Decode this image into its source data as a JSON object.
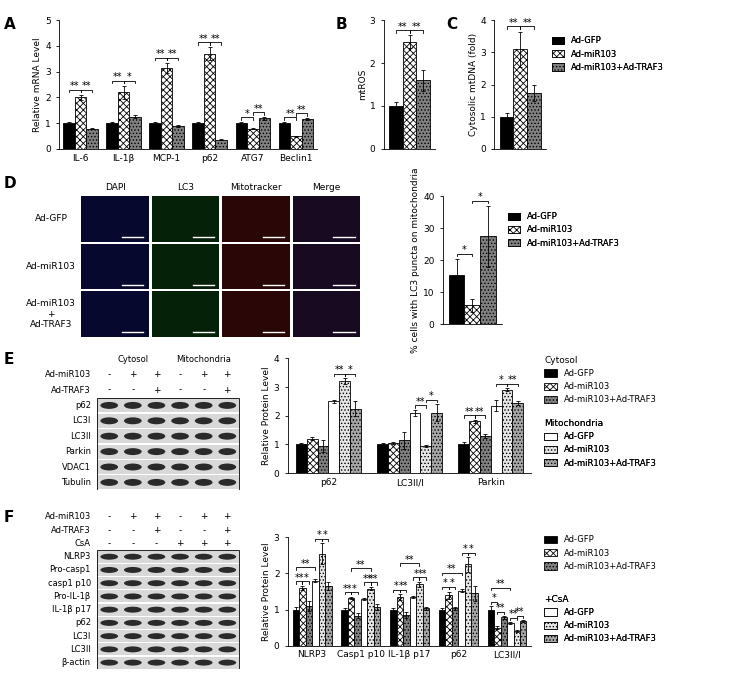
{
  "chart_data": [
    {
      "type": "bar",
      "panel": "A",
      "ylabel": "Relative mRNA Level",
      "categories": [
        "IL-6",
        "IL-1β",
        "MCP-1",
        "p62",
        "ATG7",
        "Beclin1"
      ],
      "series": [
        {
          "name": "Ad-GFP",
          "color": "#000000",
          "values": [
            1.0,
            1.0,
            1.0,
            1.0,
            1.0,
            1.0
          ],
          "errors": [
            0.03,
            0.04,
            0.05,
            0.04,
            0.03,
            0.03
          ]
        },
        {
          "name": "Ad-miR103",
          "color": "#ffffff",
          "values": [
            2.0,
            2.2,
            3.15,
            3.7,
            0.78,
            0.48
          ],
          "errors": [
            0.1,
            0.25,
            0.2,
            0.25,
            0.03,
            0.03
          ]
        },
        {
          "name": "Ad-miR103+Ad-TRAF3",
          "color": "#808080",
          "values": [
            0.78,
            1.25,
            0.88,
            0.35,
            1.18,
            1.15
          ],
          "errors": [
            0.03,
            0.05,
            0.03,
            0.02,
            0.05,
            0.04
          ]
        }
      ],
      "ylim": [
        0,
        5
      ],
      "yticks": [
        0,
        1,
        2,
        3,
        4,
        5
      ],
      "significance": [
        {
          "category": 0,
          "pair": [
            0,
            1
          ],
          "text": "**"
        },
        {
          "category": 0,
          "pair": [
            1,
            2
          ],
          "text": "**"
        },
        {
          "category": 1,
          "pair": [
            0,
            1
          ],
          "text": "**"
        },
        {
          "category": 1,
          "pair": [
            1,
            2
          ],
          "text": "*"
        },
        {
          "category": 2,
          "pair": [
            0,
            1
          ],
          "text": "**"
        },
        {
          "category": 2,
          "pair": [
            1,
            2
          ],
          "text": "**"
        },
        {
          "category": 3,
          "pair": [
            0,
            1
          ],
          "text": "**"
        },
        {
          "category": 3,
          "pair": [
            1,
            2
          ],
          "text": "**"
        },
        {
          "category": 4,
          "pair": [
            0,
            1
          ],
          "text": "*"
        },
        {
          "category": 4,
          "pair": [
            1,
            2
          ],
          "text": "**"
        },
        {
          "category": 5,
          "pair": [
            0,
            1
          ],
          "text": "**"
        },
        {
          "category": 5,
          "pair": [
            1,
            2
          ],
          "text": "**"
        }
      ]
    },
    {
      "type": "bar",
      "panel": "B",
      "ylabel": "mtROS",
      "categories": [
        null
      ],
      "tick_labels": "y",
      "series": [
        {
          "name": "Ad-GFP",
          "color": "#000000",
          "values": [
            1.0
          ],
          "errors": [
            0.1
          ]
        },
        {
          "name": "Ad-miR103",
          "color": "#ffffff",
          "values": [
            2.5
          ],
          "errors": [
            0.15
          ]
        },
        {
          "name": "Ad-miR103+Ad-TRAF3",
          "color": "#808080",
          "values": [
            1.6
          ],
          "errors": [
            0.25
          ]
        }
      ],
      "ylim": [
        0,
        3
      ],
      "yticks": [
        0,
        1,
        2,
        3
      ],
      "significance": [
        {
          "category": 0,
          "pair": [
            0,
            1
          ],
          "text": "**"
        },
        {
          "category": 0,
          "pair": [
            1,
            2
          ],
          "text": "**"
        }
      ]
    },
    {
      "type": "bar",
      "panel": "C",
      "ylabel": "Cytosolic mtDNA (fold)",
      "categories": [
        null
      ],
      "tick_labels": "y",
      "legend": "right",
      "series": [
        {
          "name": "Ad-GFP",
          "color": "#000000",
          "values": [
            1.0
          ],
          "errors": [
            0.1
          ]
        },
        {
          "name": "Ad-miR103",
          "color": "#ffffff",
          "values": [
            3.1
          ],
          "errors": [
            0.55
          ]
        },
        {
          "name": "Ad-miR103+Ad-TRAF3",
          "color": "#808080",
          "values": [
            1.75
          ],
          "errors": [
            0.25
          ]
        }
      ],
      "ylim": [
        0,
        4
      ],
      "yticks": [
        0,
        1,
        2,
        3,
        4
      ],
      "significance": [
        {
          "category": 0,
          "pair": [
            0,
            1
          ],
          "text": "**"
        },
        {
          "category": 0,
          "pair": [
            1,
            2
          ],
          "text": "**"
        }
      ]
    },
    {
      "type": "bar",
      "ylabel": "% cells with LC3 puncta on mitochondria",
      "categories": [
        null
      ],
      "tick_labels": "y",
      "legend": "right",
      "series": [
        {
          "name": "Ad-GFP",
          "color": "#000000",
          "values": [
            15.5
          ],
          "errors": [
            5
          ]
        },
        {
          "name": "Ad-miR103",
          "color": "#ffffff",
          "values": [
            6
          ],
          "errors": [
            2
          ]
        },
        {
          "name": "Ad-miR103+Ad-TRAF3",
          "color": "#808080",
          "values": [
            27.5
          ],
          "errors": [
            9.5
          ]
        }
      ],
      "ylim": [
        0,
        40
      ],
      "yticks": [
        0,
        10,
        20,
        30,
        40
      ],
      "significance": [
        {
          "category": 0,
          "pair": [
            0,
            1
          ],
          "text": "*"
        },
        {
          "category": 0,
          "pair": [
            1,
            2
          ],
          "text": "*"
        }
      ]
    },
    {
      "type": "bar",
      "ylabel": "Relative Protein Level",
      "categories": [
        "p62",
        "LC3II/I",
        "Parkin"
      ],
      "legend": "right",
      "groups": [
        {
          "label": "Cytosol",
          "series": [
            0,
            1,
            2
          ]
        },
        {
          "label": "Mitochondria",
          "series": [
            3,
            4,
            5
          ]
        }
      ],
      "series": [
        {
          "name": "Ad-GFP",
          "color": "#000000",
          "values": [
            1.0,
            1.0,
            1.0
          ],
          "errors": [
            0.06,
            0.05,
            0.08
          ]
        },
        {
          "name": "Ad-miR103",
          "color": "#ffffff",
          "values": [
            1.2,
            1.05,
            1.8
          ],
          "errors": [
            0.06,
            0.05,
            0.05
          ]
        },
        {
          "name": "Ad-miR103+Ad-TRAF3",
          "color": "#808080",
          "values": [
            0.95,
            1.15,
            1.3
          ],
          "errors": [
            0.2,
            0.3,
            0.06
          ]
        },
        {
          "name": "Ad-GFP",
          "color": "#ffffff",
          "values": [
            2.5,
            2.1,
            2.35
          ],
          "errors": [
            0.06,
            0.1,
            0.2
          ]
        },
        {
          "name": "Ad-miR103",
          "color": "#e6e6e6",
          "values": [
            3.2,
            0.95,
            2.9
          ],
          "errors": [
            0.1,
            0.03,
            0.05
          ]
        },
        {
          "name": "Ad-miR103+Ad-TRAF3",
          "color": "#a6a6a6",
          "values": [
            2.25,
            2.1,
            2.45
          ],
          "errors": [
            0.25,
            0.3,
            0.06
          ]
        }
      ],
      "ylim": [
        0,
        4
      ],
      "yticks": [
        0,
        1,
        2,
        3,
        4
      ],
      "significance": [
        {
          "category": 0,
          "pair": [
            3,
            4
          ],
          "text": "**"
        },
        {
          "category": 0,
          "pair": [
            4,
            5
          ],
          "text": "*"
        },
        {
          "category": 1,
          "pair": [
            3,
            4
          ],
          "text": "**"
        },
        {
          "category": 1,
          "pair": [
            4,
            5
          ],
          "text": "*"
        },
        {
          "category": 2,
          "pair": [
            0,
            1
          ],
          "text": "**"
        },
        {
          "category": 2,
          "pair": [
            1,
            2
          ],
          "text": "**"
        },
        {
          "category": 2,
          "pair": [
            3,
            4
          ],
          "text": "*"
        },
        {
          "category": 2,
          "pair": [
            4,
            5
          ],
          "text": "**"
        }
      ]
    },
    {
      "type": "bar",
      "ylabel": "Relative Protein Level",
      "categories": [
        "NLRP3",
        "Casp1 p10",
        "IL-1β p17",
        "p62",
        "LC3II/I"
      ],
      "legend": "right",
      "groups": [
        {
          "series": [
            0,
            1,
            2
          ]
        },
        {
          "label": "+CsA",
          "series": [
            3,
            4,
            5
          ]
        }
      ],
      "series": [
        {
          "name": "Ad-GFP",
          "color": "#000000",
          "values": [
            1.0,
            1.0,
            1.0,
            1.0,
            1.0
          ],
          "errors": [
            0.06,
            0.04,
            0.04,
            0.04,
            0.1
          ]
        },
        {
          "name": "Ad-miR103",
          "color": "#ffffff",
          "values": [
            1.6,
            1.32,
            1.35,
            1.4,
            0.5
          ],
          "errors": [
            0.06,
            0.04,
            0.08,
            0.1,
            0.04
          ]
        },
        {
          "name": "Ad-miR103+Ad-TRAF3",
          "color": "#808080",
          "values": [
            1.1,
            0.83,
            0.85,
            1.03,
            0.78
          ],
          "errors": [
            0.15,
            0.06,
            0.08,
            0.05,
            0.03
          ]
        },
        {
          "name": "Ad-GFP",
          "color": "#ffffff",
          "values": [
            1.8,
            1.3,
            1.35,
            1.52,
            0.62
          ],
          "errors": [
            0.05,
            0.03,
            0.03,
            0.04,
            0.03
          ]
        },
        {
          "name": "Ad-miR103",
          "color": "#e6e6e6",
          "values": [
            2.55,
            1.58,
            1.7,
            2.25,
            0.4
          ],
          "errors": [
            0.3,
            0.05,
            0.07,
            0.2,
            0.03
          ]
        },
        {
          "name": "Ad-miR103+Ad-TRAF3",
          "color": "#a6a6a6",
          "values": [
            1.65,
            1.07,
            1.03,
            1.45,
            0.68
          ],
          "errors": [
            0.1,
            0.08,
            0.05,
            0.2,
            0.03
          ]
        }
      ],
      "ylim": [
        0,
        3
      ],
      "yticks": [
        0,
        1,
        2,
        3
      ],
      "significance": [
        {
          "category": 0,
          "pair": [
            0,
            1
          ],
          "text": "**"
        },
        {
          "category": 0,
          "pair": [
            1,
            2
          ],
          "text": "*"
        },
        {
          "category": 0,
          "pair": [
            3,
            4
          ],
          "text": "*"
        },
        {
          "category": 0,
          "pair": [
            4,
            5
          ],
          "text": "*"
        },
        {
          "category": 0,
          "pair": [
            0,
            3
          ],
          "text": "**"
        },
        {
          "category": 1,
          "pair": [
            0,
            1
          ],
          "text": "**"
        },
        {
          "category": 1,
          "pair": [
            1,
            2
          ],
          "text": "*"
        },
        {
          "category": 1,
          "pair": [
            3,
            4
          ],
          "text": "**"
        },
        {
          "category": 1,
          "pair": [
            4,
            5
          ],
          "text": "**"
        },
        {
          "category": 1,
          "pair": [
            1,
            4
          ],
          "text": "**"
        },
        {
          "category": 2,
          "pair": [
            0,
            1
          ],
          "text": "*"
        },
        {
          "category": 2,
          "pair": [
            1,
            2
          ],
          "text": "**"
        },
        {
          "category": 2,
          "pair": [
            3,
            4
          ],
          "text": "*"
        },
        {
          "category": 2,
          "pair": [
            4,
            5
          ],
          "text": "**"
        },
        {
          "category": 2,
          "pair": [
            1,
            4
          ],
          "text": "**"
        },
        {
          "category": 3,
          "pair": [
            0,
            1
          ],
          "text": "*"
        },
        {
          "category": 3,
          "pair": [
            1,
            2
          ],
          "text": "*"
        },
        {
          "category": 3,
          "pair": [
            3,
            4
          ],
          "text": "*"
        },
        {
          "category": 3,
          "pair": [
            4,
            5
          ],
          "text": "*"
        },
        {
          "category": 3,
          "pair": [
            0,
            3
          ],
          "text": "**"
        },
        {
          "category": 4,
          "pair": [
            0,
            1
          ],
          "text": "*"
        },
        {
          "category": 4,
          "pair": [
            1,
            2
          ],
          "text": "**"
        },
        {
          "category": 4,
          "pair": [
            3,
            4
          ],
          "text": "**"
        },
        {
          "category": 4,
          "pair": [
            4,
            5
          ],
          "text": "**"
        },
        {
          "category": 4,
          "pair": [
            0,
            3
          ],
          "text": "**"
        }
      ]
    }
  ],
  "micrographs": {
    "panel": "D",
    "columns": [
      "DAPI",
      "LC3",
      "Mitotracker",
      "Merge"
    ],
    "rows": [
      "Ad-GFP",
      "Ad-miR103",
      "Ad-miR103\n+\nAd-TRAF3"
    ]
  },
  "blots": [
    {
      "panel": "E",
      "headers": [
        {
          "label": "Cytosol",
          "lanes": [
            0,
            1,
            2
          ]
        },
        {
          "label": "Mitochondria",
          "lanes": [
            3,
            4,
            5
          ]
        }
      ],
      "conditions": [
        {
          "label": "Ad-miR103",
          "signs": [
            "-",
            "+",
            "+",
            "-",
            "+",
            "+"
          ]
        },
        {
          "label": "Ad-TRAF3",
          "signs": [
            "-",
            "-",
            "+",
            "-",
            "-",
            "+"
          ]
        }
      ],
      "bands": [
        "p62",
        "LC3I",
        "LC3II",
        "Parkin",
        "VDAC1",
        "Tubulin"
      ]
    },
    {
      "panel": "F",
      "headers": [],
      "conditions": [
        {
          "label": "Ad-miR103",
          "signs": [
            "-",
            "+",
            "+",
            "-",
            "+",
            "+"
          ]
        },
        {
          "label": "Ad-TRAF3",
          "signs": [
            "-",
            "-",
            "+",
            "-",
            "-",
            "+"
          ]
        },
        {
          "label": "CsA",
          "signs": [
            "-",
            "-",
            "-",
            "+",
            "+",
            "+"
          ]
        }
      ],
      "bands": [
        "NLRP3",
        "Pro-casp1",
        "casp1 p10",
        "Pro-IL-1β",
        "IL-1β p17",
        "p62",
        "LC3I",
        "LC3II",
        "β-actin"
      ]
    }
  ]
}
